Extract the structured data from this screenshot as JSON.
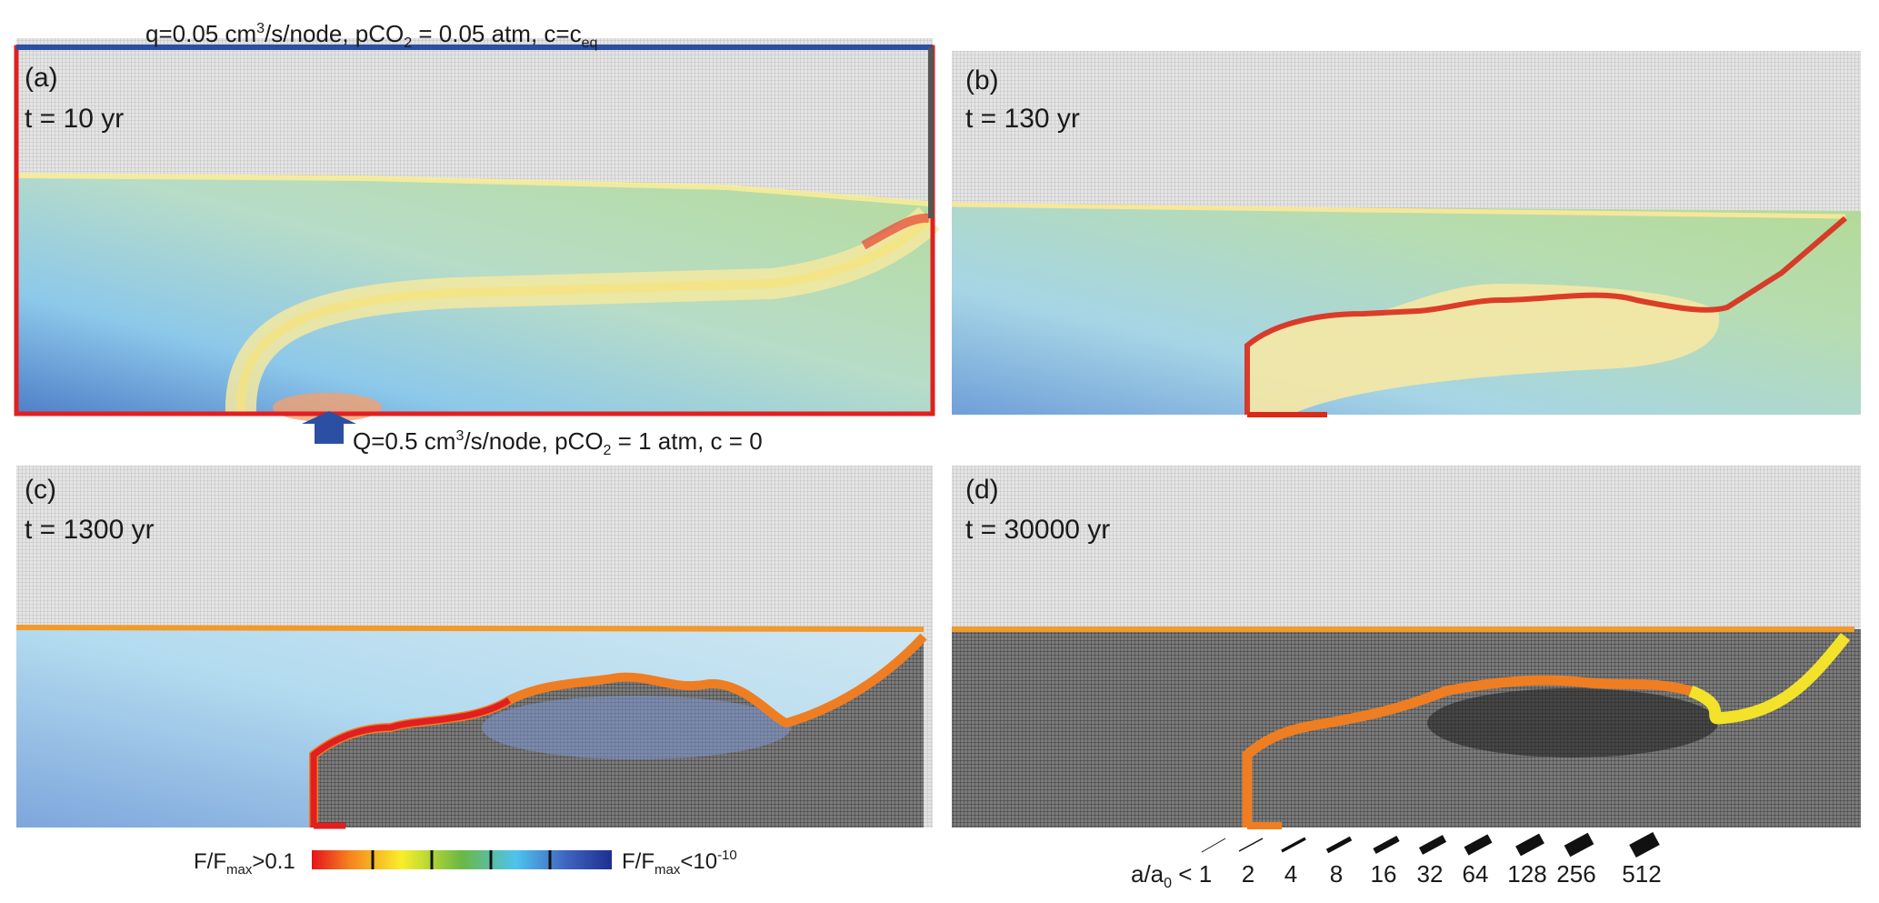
{
  "boundary": {
    "top_pre": "q=0.05 cm",
    "top_sup": "3",
    "top_mid1": "/s/node, pCO",
    "top_sub": "2",
    "top_mid2": " = 0.05 atm, c=c",
    "top_sub2": "eq",
    "bottom_pre": "Q=0.5 cm",
    "bottom_sup": "3",
    "bottom_mid1": "/s/node, pCO",
    "bottom_sub": "2",
    "bottom_mid2": " = 1 atm, c = 0"
  },
  "panels": [
    {
      "id": "(a)",
      "time": "t = 10 yr"
    },
    {
      "id": "(b)",
      "time": "t = 130 yr"
    },
    {
      "id": "(c)",
      "time": "t = 1300 yr"
    },
    {
      "id": "(d)",
      "time": "t = 30000 yr"
    }
  ],
  "flux_legend": {
    "left_pre": "F/F",
    "left_sub": "max",
    "left_post": ">0.1",
    "right_pre": "F/F",
    "right_sub": "max",
    "right_post": "<10",
    "right_sup": "-10"
  },
  "aperture_legend": {
    "prefix_pre": "a/a",
    "prefix_sub": "0",
    "prefix_post": " < 1",
    "ticks": [
      "2",
      "4",
      "8",
      "16",
      "32",
      "64",
      "128",
      "256",
      "512"
    ]
  },
  "colors": {
    "boundary_red": "#e02020",
    "boundary_blue": "#2b4fa3",
    "grid_gray": "#c9c9c9",
    "dissolved_dark": "#555555"
  }
}
